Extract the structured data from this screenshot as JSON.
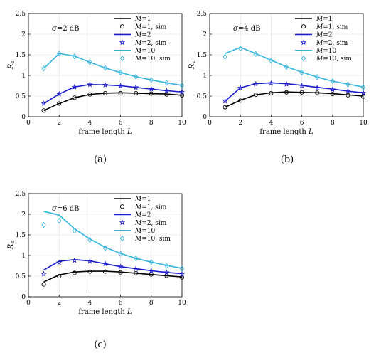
{
  "chart_data": [
    {
      "type": "line",
      "panel_label": "(a)",
      "annotation": "σ=2 dB",
      "xlabel": "frame length L",
      "ylabel": "R_s",
      "xlim": [
        0,
        10
      ],
      "ylim": [
        0,
        2.5
      ],
      "xticks": [
        "0",
        "2",
        "4",
        "6",
        "8",
        "10"
      ],
      "yticks": [
        "0",
        "0.5",
        "1",
        "1.5",
        "2",
        "2.5"
      ],
      "legend_position": "top-right",
      "x": [
        1,
        2,
        3,
        4,
        5,
        6,
        7,
        8,
        9,
        10
      ],
      "series": [
        {
          "name": "M=1",
          "kind": "line",
          "color": "#000000",
          "values": [
            0.15,
            0.32,
            0.46,
            0.54,
            0.57,
            0.58,
            0.57,
            0.56,
            0.55,
            0.52
          ]
        },
        {
          "name": "M=1, sim",
          "kind": "marker",
          "marker": "circle",
          "color": "#000000",
          "values": [
            0.15,
            0.32,
            0.46,
            0.54,
            0.57,
            0.57,
            0.57,
            0.56,
            0.54,
            0.52
          ]
        },
        {
          "name": "M=2",
          "kind": "line",
          "color": "#1a1acc",
          "values": [
            0.32,
            0.55,
            0.72,
            0.78,
            0.77,
            0.75,
            0.71,
            0.67,
            0.63,
            0.6
          ]
        },
        {
          "name": "M=2, sim",
          "kind": "marker",
          "marker": "star",
          "color": "#1a1acc",
          "values": [
            0.32,
            0.55,
            0.72,
            0.78,
            0.77,
            0.75,
            0.71,
            0.67,
            0.63,
            0.6
          ]
        },
        {
          "name": "M=10",
          "kind": "line",
          "color": "#33b4dc",
          "values": [
            1.17,
            1.53,
            1.47,
            1.32,
            1.18,
            1.07,
            0.97,
            0.89,
            0.82,
            0.76
          ]
        },
        {
          "name": "M=10, sim",
          "kind": "marker",
          "marker": "diamond",
          "color": "#33b4dc",
          "values": [
            1.17,
            1.53,
            1.46,
            1.32,
            1.18,
            1.07,
            0.97,
            0.89,
            0.82,
            0.76
          ]
        }
      ]
    },
    {
      "type": "line",
      "panel_label": "(b)",
      "annotation": "σ=4 dB",
      "xlabel": "frame length L",
      "ylabel": "R_s",
      "xlim": [
        0,
        10
      ],
      "ylim": [
        0,
        2.5
      ],
      "xticks": [
        "0",
        "2",
        "4",
        "6",
        "8",
        "10"
      ],
      "yticks": [
        "0",
        "0.5",
        "1",
        "1.5",
        "2",
        "2.5"
      ],
      "legend_position": "top-right",
      "x": [
        1,
        2,
        3,
        4,
        5,
        6,
        7,
        8,
        9,
        10
      ],
      "series": [
        {
          "name": "M=1",
          "kind": "line",
          "color": "#000000",
          "values": [
            0.23,
            0.4,
            0.53,
            0.58,
            0.6,
            0.59,
            0.58,
            0.56,
            0.53,
            0.5
          ]
        },
        {
          "name": "M=1, sim",
          "kind": "marker",
          "marker": "circle",
          "color": "#000000",
          "values": [
            0.23,
            0.39,
            0.53,
            0.57,
            0.59,
            0.59,
            0.58,
            0.55,
            0.52,
            0.49
          ]
        },
        {
          "name": "M=2",
          "kind": "line",
          "color": "#1a1acc",
          "values": [
            0.38,
            0.7,
            0.8,
            0.82,
            0.8,
            0.76,
            0.71,
            0.67,
            0.62,
            0.58
          ]
        },
        {
          "name": "M=2, sim",
          "kind": "marker",
          "marker": "star",
          "color": "#1a1acc",
          "values": [
            0.38,
            0.7,
            0.79,
            0.81,
            0.79,
            0.75,
            0.7,
            0.66,
            0.62,
            0.58
          ]
        },
        {
          "name": "M=10",
          "kind": "line",
          "color": "#33b4dc",
          "values": [
            1.53,
            1.68,
            1.53,
            1.37,
            1.21,
            1.08,
            0.96,
            0.86,
            0.79,
            0.72
          ]
        },
        {
          "name": "M=10, sim",
          "kind": "marker",
          "marker": "diamond",
          "color": "#33b4dc",
          "values": [
            1.45,
            1.65,
            1.52,
            1.36,
            1.2,
            1.07,
            0.96,
            0.86,
            0.78,
            0.71
          ]
        }
      ]
    },
    {
      "type": "line",
      "panel_label": "(c)",
      "annotation": "σ=6 dB",
      "xlabel": "frame length L",
      "ylabel": "R_s",
      "xlim": [
        0,
        10
      ],
      "ylim": [
        0,
        2.5
      ],
      "xticks": [
        "0",
        "2",
        "4",
        "6",
        "8",
        "10"
      ],
      "yticks": [
        "0",
        "0.5",
        "1",
        "1.5",
        "2",
        "2.5"
      ],
      "legend_position": "top-right",
      "x": [
        1,
        2,
        3,
        4,
        5,
        6,
        7,
        8,
        9,
        10
      ],
      "series": [
        {
          "name": "M=1",
          "kind": "line",
          "color": "#000000",
          "values": [
            0.36,
            0.53,
            0.6,
            0.62,
            0.62,
            0.6,
            0.57,
            0.54,
            0.51,
            0.48
          ]
        },
        {
          "name": "M=1, sim",
          "kind": "marker",
          "marker": "circle",
          "color": "#000000",
          "values": [
            0.3,
            0.5,
            0.58,
            0.61,
            0.61,
            0.59,
            0.57,
            0.54,
            0.51,
            0.47
          ]
        },
        {
          "name": "M=2",
          "kind": "line",
          "color": "#1a1acc",
          "values": [
            0.65,
            0.86,
            0.9,
            0.87,
            0.8,
            0.73,
            0.68,
            0.63,
            0.59,
            0.56
          ]
        },
        {
          "name": "M=2, sim",
          "kind": "marker",
          "marker": "star",
          "color": "#1a1acc",
          "values": [
            0.55,
            0.83,
            0.88,
            0.86,
            0.8,
            0.73,
            0.68,
            0.63,
            0.59,
            0.55
          ]
        },
        {
          "name": "M=10",
          "kind": "line",
          "color": "#33b4dc",
          "values": [
            2.07,
            1.98,
            1.65,
            1.4,
            1.2,
            1.05,
            0.93,
            0.84,
            0.76,
            0.69
          ]
        },
        {
          "name": "M=10, sim",
          "kind": "marker",
          "marker": "diamond",
          "color": "#33b4dc",
          "values": [
            1.74,
            1.84,
            1.6,
            1.38,
            1.18,
            1.04,
            0.93,
            0.84,
            0.75,
            0.68
          ]
        }
      ]
    }
  ]
}
